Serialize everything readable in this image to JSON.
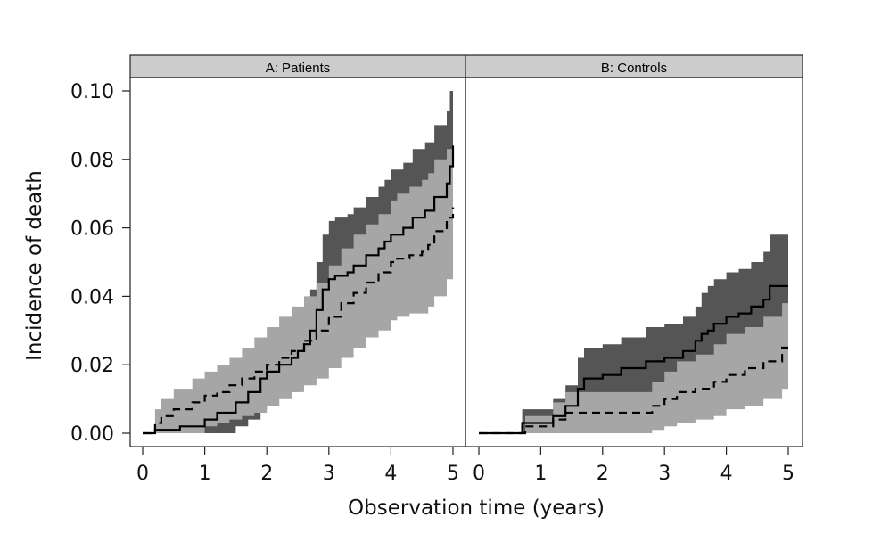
{
  "chart_data": {
    "type": "line",
    "subtype": "step cumulative incidence with confidence bands",
    "xlabel": "Observation time (years)",
    "ylabel": "Incidence of death",
    "xlim": [
      0,
      5
    ],
    "ylim": [
      0,
      0.1
    ],
    "x_ticks": [
      0,
      1,
      2,
      3,
      4,
      5
    ],
    "y_ticks": [
      0.0,
      0.02,
      0.04,
      0.06,
      0.08,
      0.1
    ],
    "y_tick_labels": [
      "0.00",
      "0.02",
      "0.04",
      "0.06",
      "0.08",
      "0.10"
    ],
    "colors": {
      "band_dark": "#555555",
      "band_light": "#a6a6a6",
      "strip_fill": "#cccccc",
      "line": "#000000"
    },
    "panels": [
      {
        "title": "A: Patients",
        "series": [
          {
            "name": "solid",
            "style": "solid",
            "x": [
              0,
              0.2,
              0.6,
              1.0,
              1.2,
              1.5,
              1.7,
              1.9,
              2.0,
              2.2,
              2.4,
              2.5,
              2.6,
              2.7,
              2.8,
              2.9,
              3.0,
              3.1,
              3.3,
              3.4,
              3.6,
              3.8,
              3.9,
              4.0,
              4.2,
              4.35,
              4.55,
              4.7,
              4.9,
              4.95,
              5.0
            ],
            "y": [
              0,
              0.001,
              0.002,
              0.004,
              0.006,
              0.009,
              0.012,
              0.016,
              0.018,
              0.02,
              0.022,
              0.024,
              0.026,
              0.03,
              0.036,
              0.042,
              0.045,
              0.046,
              0.047,
              0.049,
              0.052,
              0.054,
              0.056,
              0.058,
              0.06,
              0.063,
              0.065,
              0.069,
              0.073,
              0.078,
              0.084
            ],
            "band": {
              "lower": [
                0,
                0,
                0,
                0,
                0,
                0.002,
                0.004,
                0.007,
                0.008,
                0.01,
                0.012,
                0.013,
                0.015,
                0.018,
                0.022,
                0.026,
                0.028,
                0.029,
                0.03,
                0.031,
                0.033,
                0.034,
                0.036,
                0.037,
                0.039,
                0.041,
                0.043,
                0.046,
                0.049,
                0.052,
                0.056
              ],
              "upper": [
                0,
                0.003,
                0.005,
                0.01,
                0.013,
                0.017,
                0.02,
                0.025,
                0.028,
                0.03,
                0.033,
                0.035,
                0.037,
                0.042,
                0.05,
                0.058,
                0.062,
                0.063,
                0.064,
                0.066,
                0.069,
                0.072,
                0.074,
                0.077,
                0.079,
                0.083,
                0.085,
                0.09,
                0.094,
                0.1,
                0.104
              ]
            }
          },
          {
            "name": "dashed",
            "style": "dashed",
            "x": [
              0,
              0.2,
              0.3,
              0.5,
              0.8,
              1.0,
              1.2,
              1.4,
              1.6,
              1.8,
              2.0,
              2.2,
              2.4,
              2.6,
              2.8,
              3.0,
              3.2,
              3.4,
              3.6,
              3.8,
              4.0,
              4.1,
              4.3,
              4.5,
              4.6,
              4.7,
              4.9,
              5.0
            ],
            "y": [
              0,
              0.003,
              0.005,
              0.007,
              0.009,
              0.011,
              0.012,
              0.014,
              0.016,
              0.018,
              0.02,
              0.022,
              0.024,
              0.027,
              0.03,
              0.034,
              0.038,
              0.041,
              0.044,
              0.047,
              0.05,
              0.051,
              0.052,
              0.053,
              0.055,
              0.059,
              0.063,
              0.066
            ],
            "band": {
              "lower": [
                0,
                0,
                0,
                0,
                0,
                0.002,
                0.003,
                0.004,
                0.005,
                0.006,
                0.008,
                0.01,
                0.012,
                0.014,
                0.016,
                0.019,
                0.022,
                0.025,
                0.028,
                0.03,
                0.033,
                0.034,
                0.035,
                0.035,
                0.037,
                0.04,
                0.045,
                0.049
              ],
              "upper": [
                0,
                0.007,
                0.01,
                0.013,
                0.016,
                0.018,
                0.02,
                0.022,
                0.025,
                0.028,
                0.031,
                0.034,
                0.037,
                0.04,
                0.044,
                0.049,
                0.054,
                0.058,
                0.061,
                0.064,
                0.068,
                0.07,
                0.072,
                0.074,
                0.076,
                0.08,
                0.083,
                0.086
              ]
            }
          }
        ]
      },
      {
        "title": "B: Controls",
        "series": [
          {
            "name": "solid",
            "style": "solid",
            "x": [
              0,
              0.7,
              1.0,
              1.2,
              1.4,
              1.6,
              1.7,
              2.0,
              2.3,
              2.7,
              3.0,
              3.3,
              3.5,
              3.6,
              3.7,
              3.8,
              4.0,
              4.2,
              4.4,
              4.6,
              4.7,
              5.0
            ],
            "y": [
              0,
              0.003,
              0.003,
              0.005,
              0.008,
              0.013,
              0.016,
              0.017,
              0.019,
              0.021,
              0.022,
              0.024,
              0.027,
              0.029,
              0.03,
              0.032,
              0.034,
              0.035,
              0.037,
              0.039,
              0.043,
              0.043
            ],
            "band": {
              "lower": [
                0,
                0,
                0,
                0,
                0.001,
                0.004,
                0.006,
                0.007,
                0.008,
                0.01,
                0.011,
                0.012,
                0.014,
                0.016,
                0.017,
                0.018,
                0.02,
                0.021,
                0.022,
                0.024,
                0.027,
                0.027
              ],
              "upper": [
                0,
                0.007,
                0.007,
                0.01,
                0.014,
                0.022,
                0.025,
                0.026,
                0.028,
                0.031,
                0.032,
                0.034,
                0.037,
                0.041,
                0.043,
                0.045,
                0.047,
                0.048,
                0.05,
                0.053,
                0.058,
                0.058
              ]
            }
          },
          {
            "name": "dashed",
            "style": "dashed",
            "x": [
              0,
              0.75,
              1.2,
              1.4,
              2.0,
              2.6,
              2.8,
              3.0,
              3.2,
              3.5,
              3.8,
              4.0,
              4.3,
              4.6,
              4.9,
              5.0
            ],
            "y": [
              0,
              0.002,
              0.004,
              0.006,
              0.006,
              0.006,
              0.008,
              0.01,
              0.012,
              0.013,
              0.015,
              0.017,
              0.019,
              0.021,
              0.025,
              0.025
            ],
            "band": {
              "lower": [
                0,
                0,
                0,
                0,
                0,
                0,
                0.001,
                0.002,
                0.003,
                0.004,
                0.005,
                0.007,
                0.008,
                0.01,
                0.013,
                0.013
              ],
              "upper": [
                0,
                0.005,
                0.009,
                0.012,
                0.012,
                0.012,
                0.015,
                0.018,
                0.021,
                0.023,
                0.026,
                0.029,
                0.031,
                0.034,
                0.038,
                0.038
              ]
            }
          }
        ]
      }
    ]
  }
}
